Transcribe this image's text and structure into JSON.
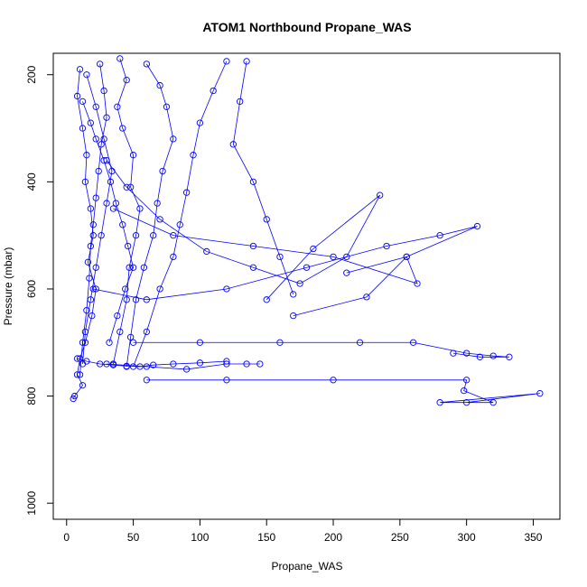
{
  "chart_data": {
    "type": "line",
    "title": "ATOM1 Northbound Propane_WAS",
    "xlabel": "Propane_WAS",
    "ylabel": "Pressure (mbar)",
    "xlim": [
      -10,
      370
    ],
    "ylim": [
      1030,
      160
    ],
    "y_reversed": true,
    "xticks": [
      0,
      50,
      100,
      150,
      200,
      250,
      300,
      350
    ],
    "yticks": [
      200,
      400,
      600,
      800,
      1000
    ],
    "grid": false,
    "legend": "none",
    "colors": {
      "series": "#0000ff",
      "axis": "#000000"
    },
    "marker": "open-circle",
    "series": [
      {
        "x": [
          10,
          8,
          12,
          15,
          14,
          18,
          20,
          16,
          22,
          19,
          14,
          10,
          8,
          12,
          6,
          5
        ],
        "y": [
          190,
          240,
          300,
          350,
          400,
          450,
          500,
          550,
          600,
          650,
          700,
          730,
          760,
          780,
          800,
          805
        ]
      },
      {
        "x": [
          25,
          28,
          30,
          26,
          24,
          22,
          20,
          18,
          17,
          15,
          12,
          10
        ],
        "y": [
          180,
          230,
          280,
          330,
          380,
          430,
          480,
          520,
          580,
          640,
          700,
          760
        ]
      },
      {
        "x": [
          40,
          45,
          38,
          42,
          50,
          48,
          55,
          52,
          47,
          45,
          40,
          35
        ],
        "y": [
          170,
          210,
          260,
          300,
          350,
          410,
          450,
          500,
          560,
          620,
          680,
          740
        ]
      },
      {
        "x": [
          60,
          70,
          75,
          80,
          72,
          68,
          65,
          58,
          52,
          48,
          45
        ],
        "y": [
          180,
          220,
          260,
          320,
          380,
          440,
          500,
          560,
          620,
          690,
          745
        ]
      },
      {
        "x": [
          120,
          110,
          100,
          95,
          90,
          85,
          80,
          70,
          60,
          50
        ],
        "y": [
          175,
          230,
          290,
          350,
          420,
          480,
          540,
          600,
          680,
          745
        ]
      },
      {
        "x": [
          135,
          130,
          125,
          140,
          150,
          160,
          170
        ],
        "y": [
          175,
          250,
          330,
          400,
          470,
          540,
          610
        ]
      },
      {
        "x": [
          30,
          45,
          70,
          105,
          140,
          175,
          210,
          235,
          185,
          150
        ],
        "y": [
          360,
          410,
          470,
          530,
          560,
          590,
          540,
          425,
          525,
          620
        ]
      },
      {
        "x": [
          20,
          60,
          120,
          180,
          240,
          280,
          308,
          255,
          210
        ],
        "y": [
          600,
          620,
          600,
          560,
          520,
          500,
          483,
          540,
          570
        ]
      },
      {
        "x": [
          35,
          80,
          140,
          200,
          263,
          255,
          225,
          170
        ],
        "y": [
          450,
          500,
          520,
          540,
          590,
          540,
          615,
          650
        ]
      },
      {
        "x": [
          50,
          100,
          160,
          220,
          260,
          300,
          320,
          332,
          310,
          290
        ],
        "y": [
          700,
          700,
          700,
          700,
          700,
          720,
          725,
          727,
          727,
          720
        ]
      },
      {
        "x": [
          60,
          120,
          200,
          300,
          298,
          320,
          280,
          355,
          300
        ],
        "y": [
          770,
          770,
          770,
          770,
          790,
          812,
          812,
          795,
          812
        ]
      },
      {
        "x": [
          30,
          60,
          90,
          120,
          145,
          135
        ],
        "y": [
          740,
          745,
          750,
          740,
          740,
          740
        ]
      },
      {
        "x": [
          8,
          15,
          25,
          35,
          45,
          55,
          65,
          80,
          100,
          120
        ],
        "y": [
          730,
          735,
          740,
          742,
          744,
          745,
          742,
          740,
          738,
          735
        ]
      },
      {
        "x": [
          12,
          18,
          22,
          28,
          33,
          37,
          42,
          46,
          50,
          44,
          38,
          32
        ],
        "y": [
          250,
          290,
          320,
          360,
          400,
          440,
          480,
          520,
          560,
          600,
          650,
          700
        ]
      },
      {
        "x": [
          15,
          22,
          28,
          34,
          30,
          26,
          22,
          18,
          14,
          12
        ],
        "y": [
          200,
          260,
          320,
          380,
          440,
          500,
          560,
          620,
          680,
          740
        ]
      }
    ]
  }
}
